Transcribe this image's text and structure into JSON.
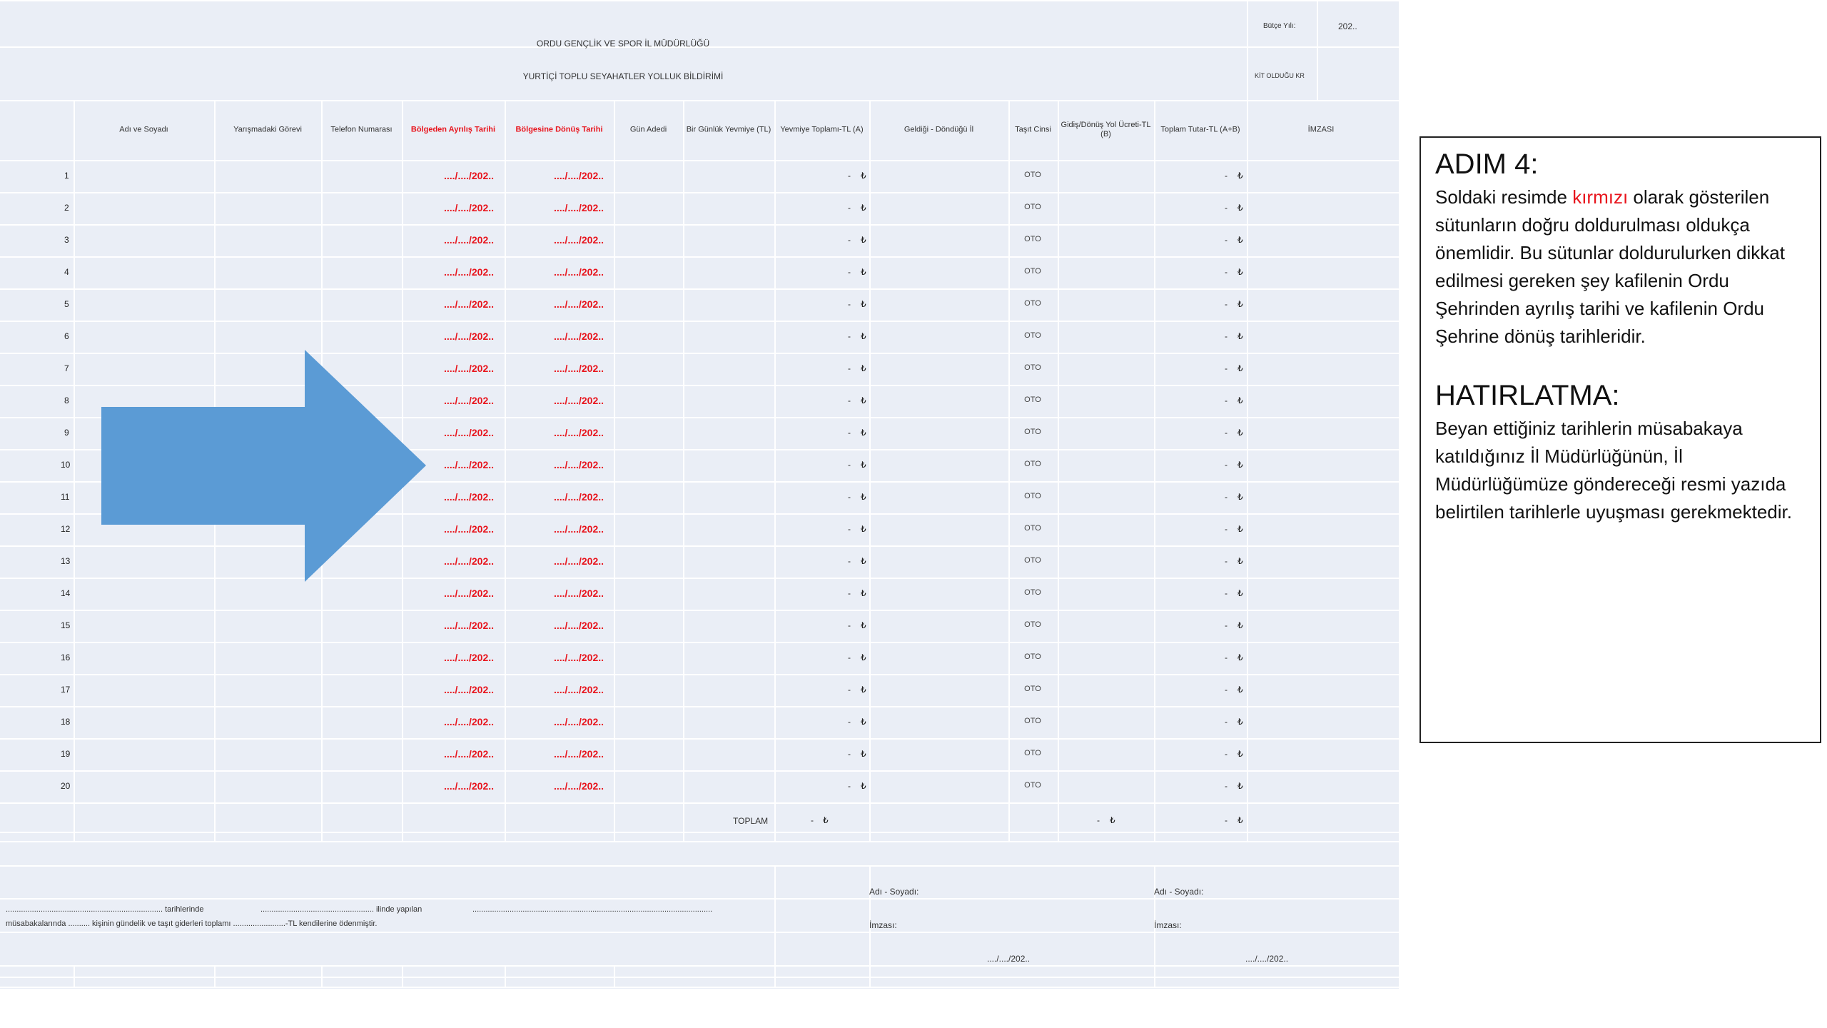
{
  "sheet": {
    "budget_label": "Bütçe Yılı:",
    "budget_value": "202..",
    "title1": "ORDU GENÇLİK VE SPOR İL MÜDÜRLÜĞÜ",
    "title2": "YURTİÇİ TOPLU SEYAHATLER YOLLUK BİLDİRİMİ",
    "kit_label": "KİT OLDUĞU KR",
    "columns": [
      {
        "label": "Adı ve Soyadı",
        "red": false
      },
      {
        "label": "Yarışmadaki Görevi",
        "red": false
      },
      {
        "label": "Telefon Numarası",
        "red": false
      },
      {
        "label": "Bölgeden Ayrılış Tarihi",
        "red": true
      },
      {
        "label": "Bölgesine Dönüş Tarihi",
        "red": true
      },
      {
        "label": "Gün Adedi",
        "red": false
      },
      {
        "label": "Bir Günlük Yevmiye (TL)",
        "red": false
      },
      {
        "label": "Yevmiye Toplamı-TL (A)",
        "red": false
      },
      {
        "label": "Geldiği - Döndüğü İl",
        "red": false
      },
      {
        "label": "Taşıt Cinsi",
        "red": false
      },
      {
        "label": "Gidiş/Dönüş Yol Ücreti-TL (B)",
        "red": false
      },
      {
        "label": "Toplam Tutar-TL (A+B)",
        "red": false
      },
      {
        "label": "İMZASI",
        "red": false
      }
    ],
    "row_numbers": [
      "1",
      "2",
      "3",
      "4",
      "5",
      "6",
      "7",
      "8",
      "9",
      "10",
      "11",
      "12",
      "13",
      "14",
      "15",
      "16",
      "17",
      "18",
      "19",
      "20"
    ],
    "date_placeholder": "..../..../202..",
    "dash": "-",
    "currency": "₺",
    "vehicle": "OTO",
    "total_label": "TOPLAM",
    "footer_line1_a": "........................................................................ tarihlerinde",
    "footer_line1_b": ".................................................... ilinde yapılan",
    "footer_line1_c": "..............................................................................................................",
    "footer_line2": "müsabakalarında .......... kişinin gündelik ve taşıt giderleri toplamı ........................-TL kendilerine ödenmiştir.",
    "sign1_name": "Adı - Soyadı:",
    "sign1_signature": "İmzası:",
    "sign1_date": "..../..../202..",
    "sign2_name": "Adı - Soyadı:",
    "sign2_signature": "İmzası:",
    "sign2_date": "..../..../202.."
  },
  "arrow": {
    "color": "#5b9bd5",
    "icon": "right-arrow-icon"
  },
  "info": {
    "heading1": "ADIM 4:",
    "p1_before": "Soldaki resimde ",
    "p1_red": "kırmızı",
    "p1_after": " olarak gösterilen sütunların doğru doldurulması oldukça önemlidir. Bu sütunlar doldurulurken dikkat edilmesi gereken şey kafilenin Ordu Şehrinden ayrılış tarihi ve kafilenin Ordu Şehrine dönüş tarihleridir.",
    "heading2": "HATIRLATMA:",
    "p2": "Beyan ettiğiniz tarihlerin müsabakaya katıldığınız İl Müdürlüğünün, İl Müdürlüğümüze göndereceği resmi yazıda belirtilen tarihlerle uyuşması gerekmektedir.",
    "accent_color": "#e8141c"
  }
}
